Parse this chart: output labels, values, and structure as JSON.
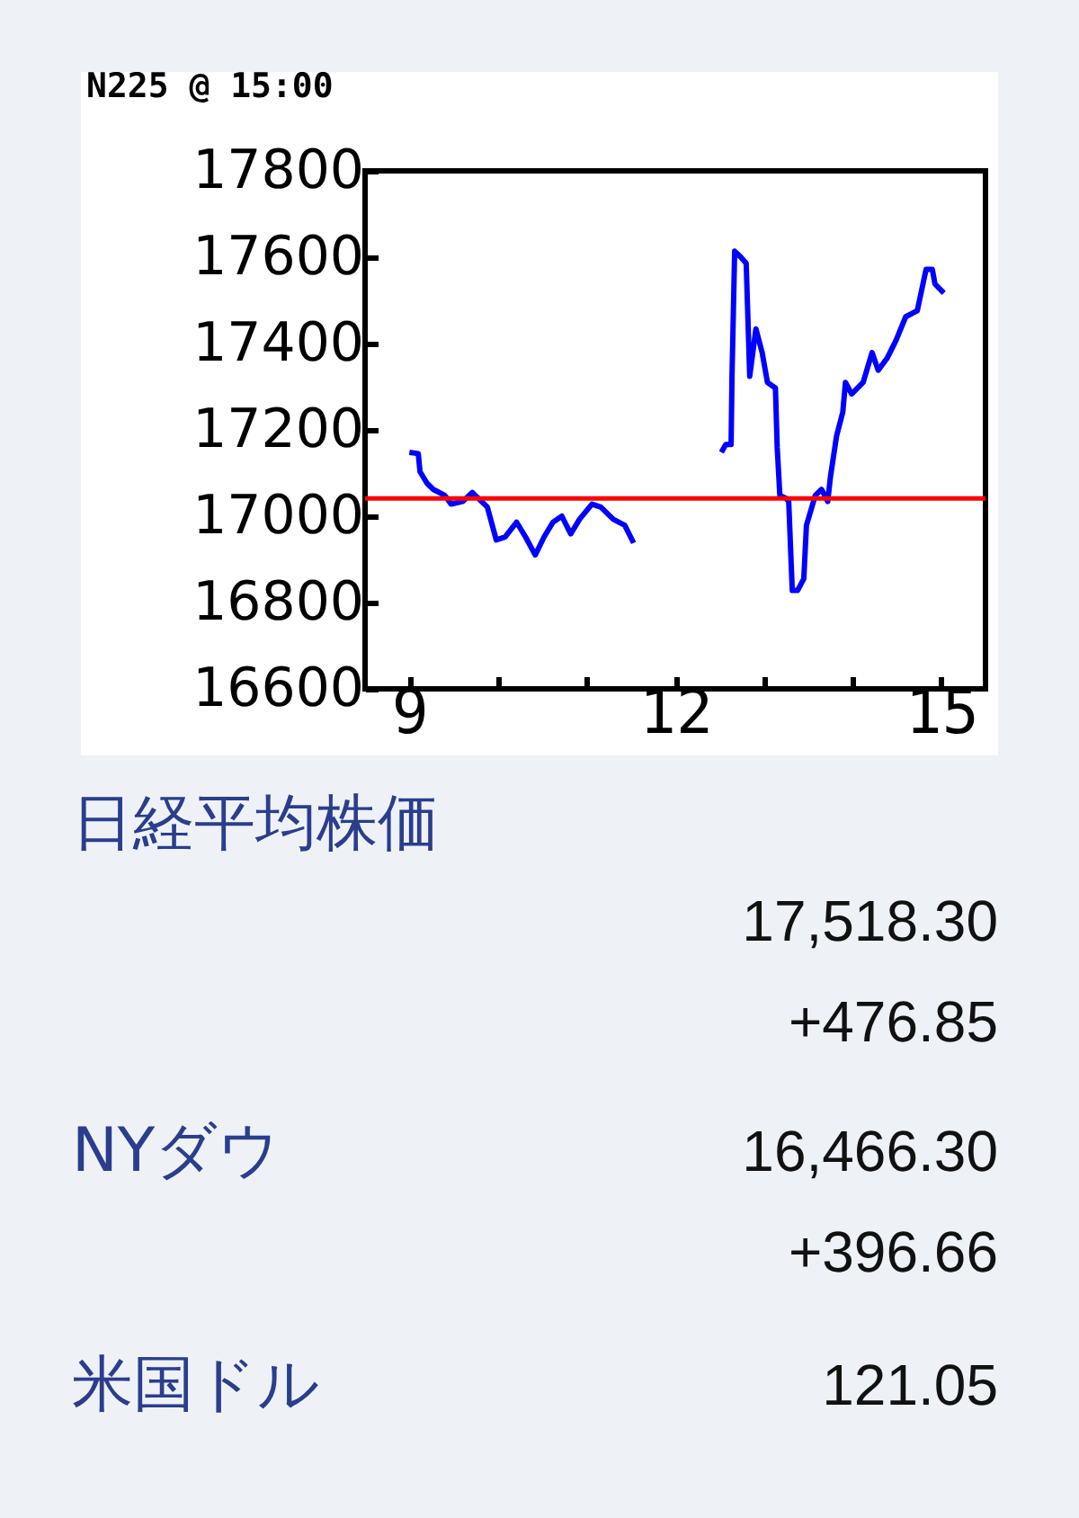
{
  "chart_data": [
    {
      "type": "line",
      "title": "N225 @ 15:00",
      "xlim": [
        8.5,
        15.5
      ],
      "xticks": [
        9,
        {
          "value": 10,
          "label": null
        },
        {
          "value": 11,
          "label": null
        },
        12,
        {
          "value": 13,
          "label": null
        },
        {
          "value": 14,
          "label": null
        },
        15
      ],
      "ylim": [
        16600,
        17800
      ],
      "yticks": [
        16600,
        16800,
        17000,
        17200,
        17400,
        17600,
        17800
      ],
      "grid": false,
      "legend": false,
      "ref_lines": [
        {
          "axis": "y",
          "value": 17041,
          "color": "#ff0000"
        }
      ],
      "series": [
        {
          "color": "#0000ff",
          "x": [
            9.0,
            9.1,
            9.12,
            9.2,
            9.27,
            9.4,
            9.47,
            9.6,
            9.71,
            9.88,
            9.98,
            10.08,
            10.21,
            10.31,
            10.42,
            10.52,
            10.62,
            10.72,
            10.82,
            10.92,
            11.06,
            11.16,
            11.3,
            11.43,
            11.53,
            12.0,
            12.52,
            12.57,
            12.63,
            12.64,
            12.67,
            12.74,
            12.8,
            12.84,
            12.91,
            12.98,
            13.04,
            13.13,
            13.15,
            13.18,
            13.25,
            13.28,
            13.32,
            13.38,
            13.45,
            13.48,
            13.58,
            13.65,
            13.72,
            13.75,
            13.82,
            13.89,
            13.92,
            13.99,
            14.12,
            14.22,
            14.29,
            14.39,
            14.49,
            14.6,
            14.73,
            14.83,
            14.9,
            14.93,
            15.03
          ],
          "values": [
            17148,
            17145,
            17103,
            17076,
            17062,
            17048,
            17028,
            17034,
            17055,
            17021,
            16945,
            16952,
            16986,
            16952,
            16910,
            16952,
            16986,
            17000,
            16959,
            16993,
            17028,
            17021,
            16993,
            16979,
            16938,
            null,
            17148,
            17166,
            17166,
            17324,
            17614,
            17600,
            17586,
            17324,
            17434,
            17379,
            17310,
            17297,
            17159,
            17048,
            17041,
            17034,
            16828,
            16828,
            16855,
            16979,
            17048,
            17062,
            17034,
            17090,
            17186,
            17241,
            17310,
            17283,
            17310,
            17379,
            17338,
            17366,
            17407,
            17462,
            17476,
            17572,
            17572,
            17538,
            17517
          ]
        }
      ]
    },
    {
      "type": "other",
      "annotations": [
        "日経平均株価",
        "17,518.30",
        "+476.85",
        "NYダウ",
        "16,466.30",
        "+396.66",
        "米国ドル",
        "121.05"
      ]
    }
  ]
}
